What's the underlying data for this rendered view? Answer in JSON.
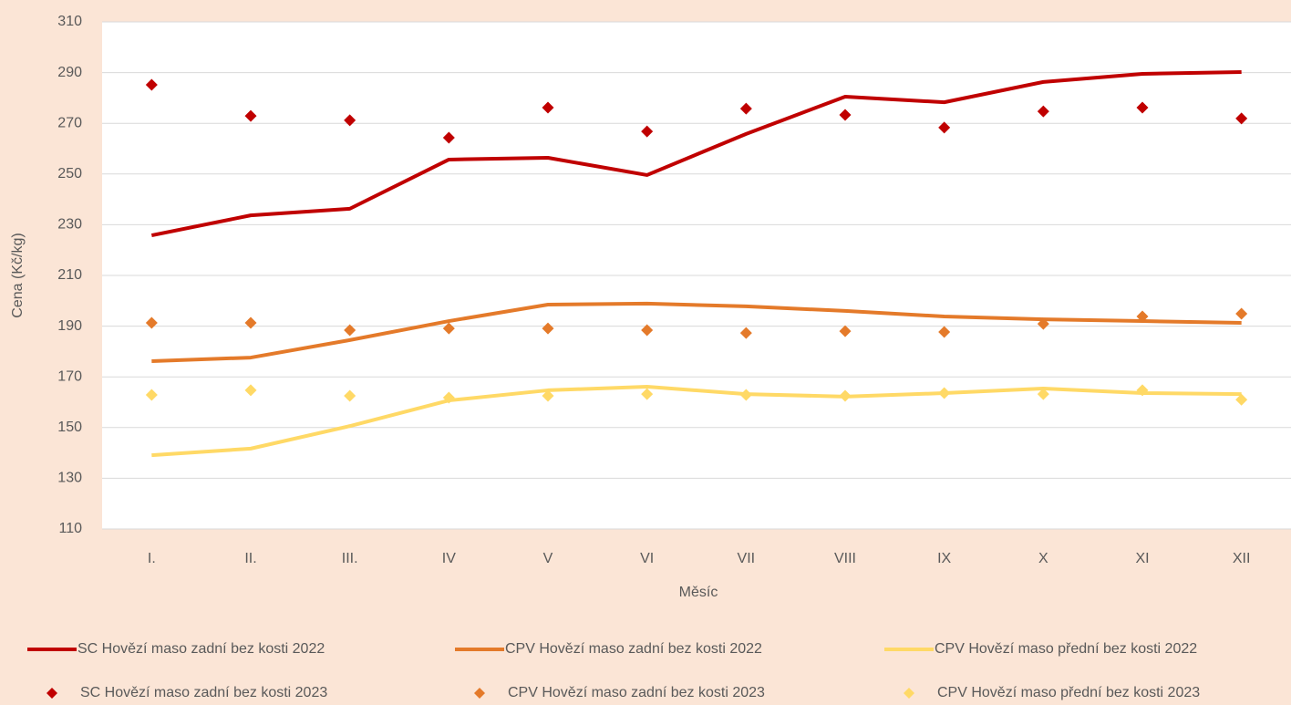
{
  "chart_data": {
    "type": "line",
    "y_label": "Cena (Kč/kg)",
    "x_label": "Měsíc",
    "categories": [
      "I.",
      "II.",
      "III.",
      "IV",
      "V",
      "VI",
      "VII",
      "VIII",
      "IX",
      "X",
      "XI",
      "XII"
    ],
    "ylim": [
      110,
      310
    ],
    "yticks": [
      110,
      130,
      150,
      170,
      190,
      210,
      230,
      250,
      270,
      290,
      310
    ],
    "grid": true,
    "series": [
      {
        "name": "SC Hovězí  maso zadní bez kosti 2022",
        "style": "line",
        "color": "#c00000",
        "values": [
          225.8,
          233.7,
          236.3,
          255.7,
          256.4,
          249.6,
          265.8,
          280.5,
          278.3,
          286.3,
          289.5,
          290.2
        ]
      },
      {
        "name": "CPV  Hovězí maso zadní bez kosti 2022",
        "style": "line",
        "color": "#e47a2a",
        "values": [
          176.2,
          177.6,
          184.5,
          192,
          198.5,
          198.9,
          197.8,
          196,
          193.8,
          192.7,
          192,
          191.3
        ]
      },
      {
        "name": "CPV Hovězí maso přední bez kosti 2022",
        "style": "line",
        "color": "#ffd966",
        "values": [
          139.1,
          141.7,
          150.6,
          160.7,
          164.7,
          166.1,
          163.2,
          162.2,
          163.6,
          165.4,
          163.6,
          163.2
        ]
      },
      {
        "name": "SC Hovězí  maso zadní bez kosti 2023",
        "style": "diamond",
        "color": "#c00000",
        "values": [
          285.2,
          272.9,
          271.2,
          264.3,
          276.2,
          266.8,
          275.8,
          273.3,
          268.3,
          274.7,
          276.2,
          271.9
        ]
      },
      {
        "name": "CPV Hovězí maso zadní bez kosti 2023",
        "style": "diamond",
        "color": "#e47a2a",
        "values": [
          191.3,
          191.3,
          188.4,
          189.1,
          189.1,
          188.4,
          187.3,
          188,
          187.7,
          190.9,
          193.8,
          194.9
        ]
      },
      {
        "name": "CPV Hovězí maso přední bez kosti 2023",
        "style": "diamond",
        "color": "#ffd966",
        "values": [
          162.9,
          164.7,
          162.5,
          161.8,
          162.5,
          163.2,
          162.9,
          162.5,
          163.6,
          163.2,
          164.7,
          161
        ]
      }
    ]
  }
}
